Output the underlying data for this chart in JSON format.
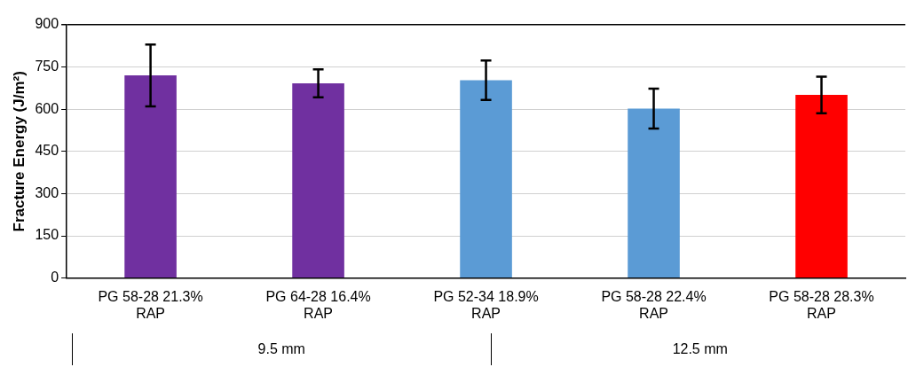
{
  "chart_data": {
    "type": "bar",
    "ylabel": "Fracture Energy (J/m²)",
    "categories": [
      "PG 58-28 21.3% RAP",
      "PG 64-28 16.4% RAP",
      "PG 52-34 18.9% RAP",
      "PG 58-28 22.4% RAP",
      "PG 58-28 28.3% RAP"
    ],
    "values": [
      720,
      692,
      703,
      602,
      651
    ],
    "errors": [
      110,
      50,
      70,
      71,
      65
    ],
    "colors": [
      "#7030a0",
      "#7030a0",
      "#5b9bd5",
      "#5b9bd5",
      "#ff0000"
    ],
    "ylim": [
      0,
      900
    ],
    "yticks": [
      0,
      150,
      300,
      450,
      600,
      750,
      900
    ],
    "grid": "y",
    "legend": false,
    "annotations": [
      "9.5 mm",
      "12.5 mm"
    ]
  }
}
